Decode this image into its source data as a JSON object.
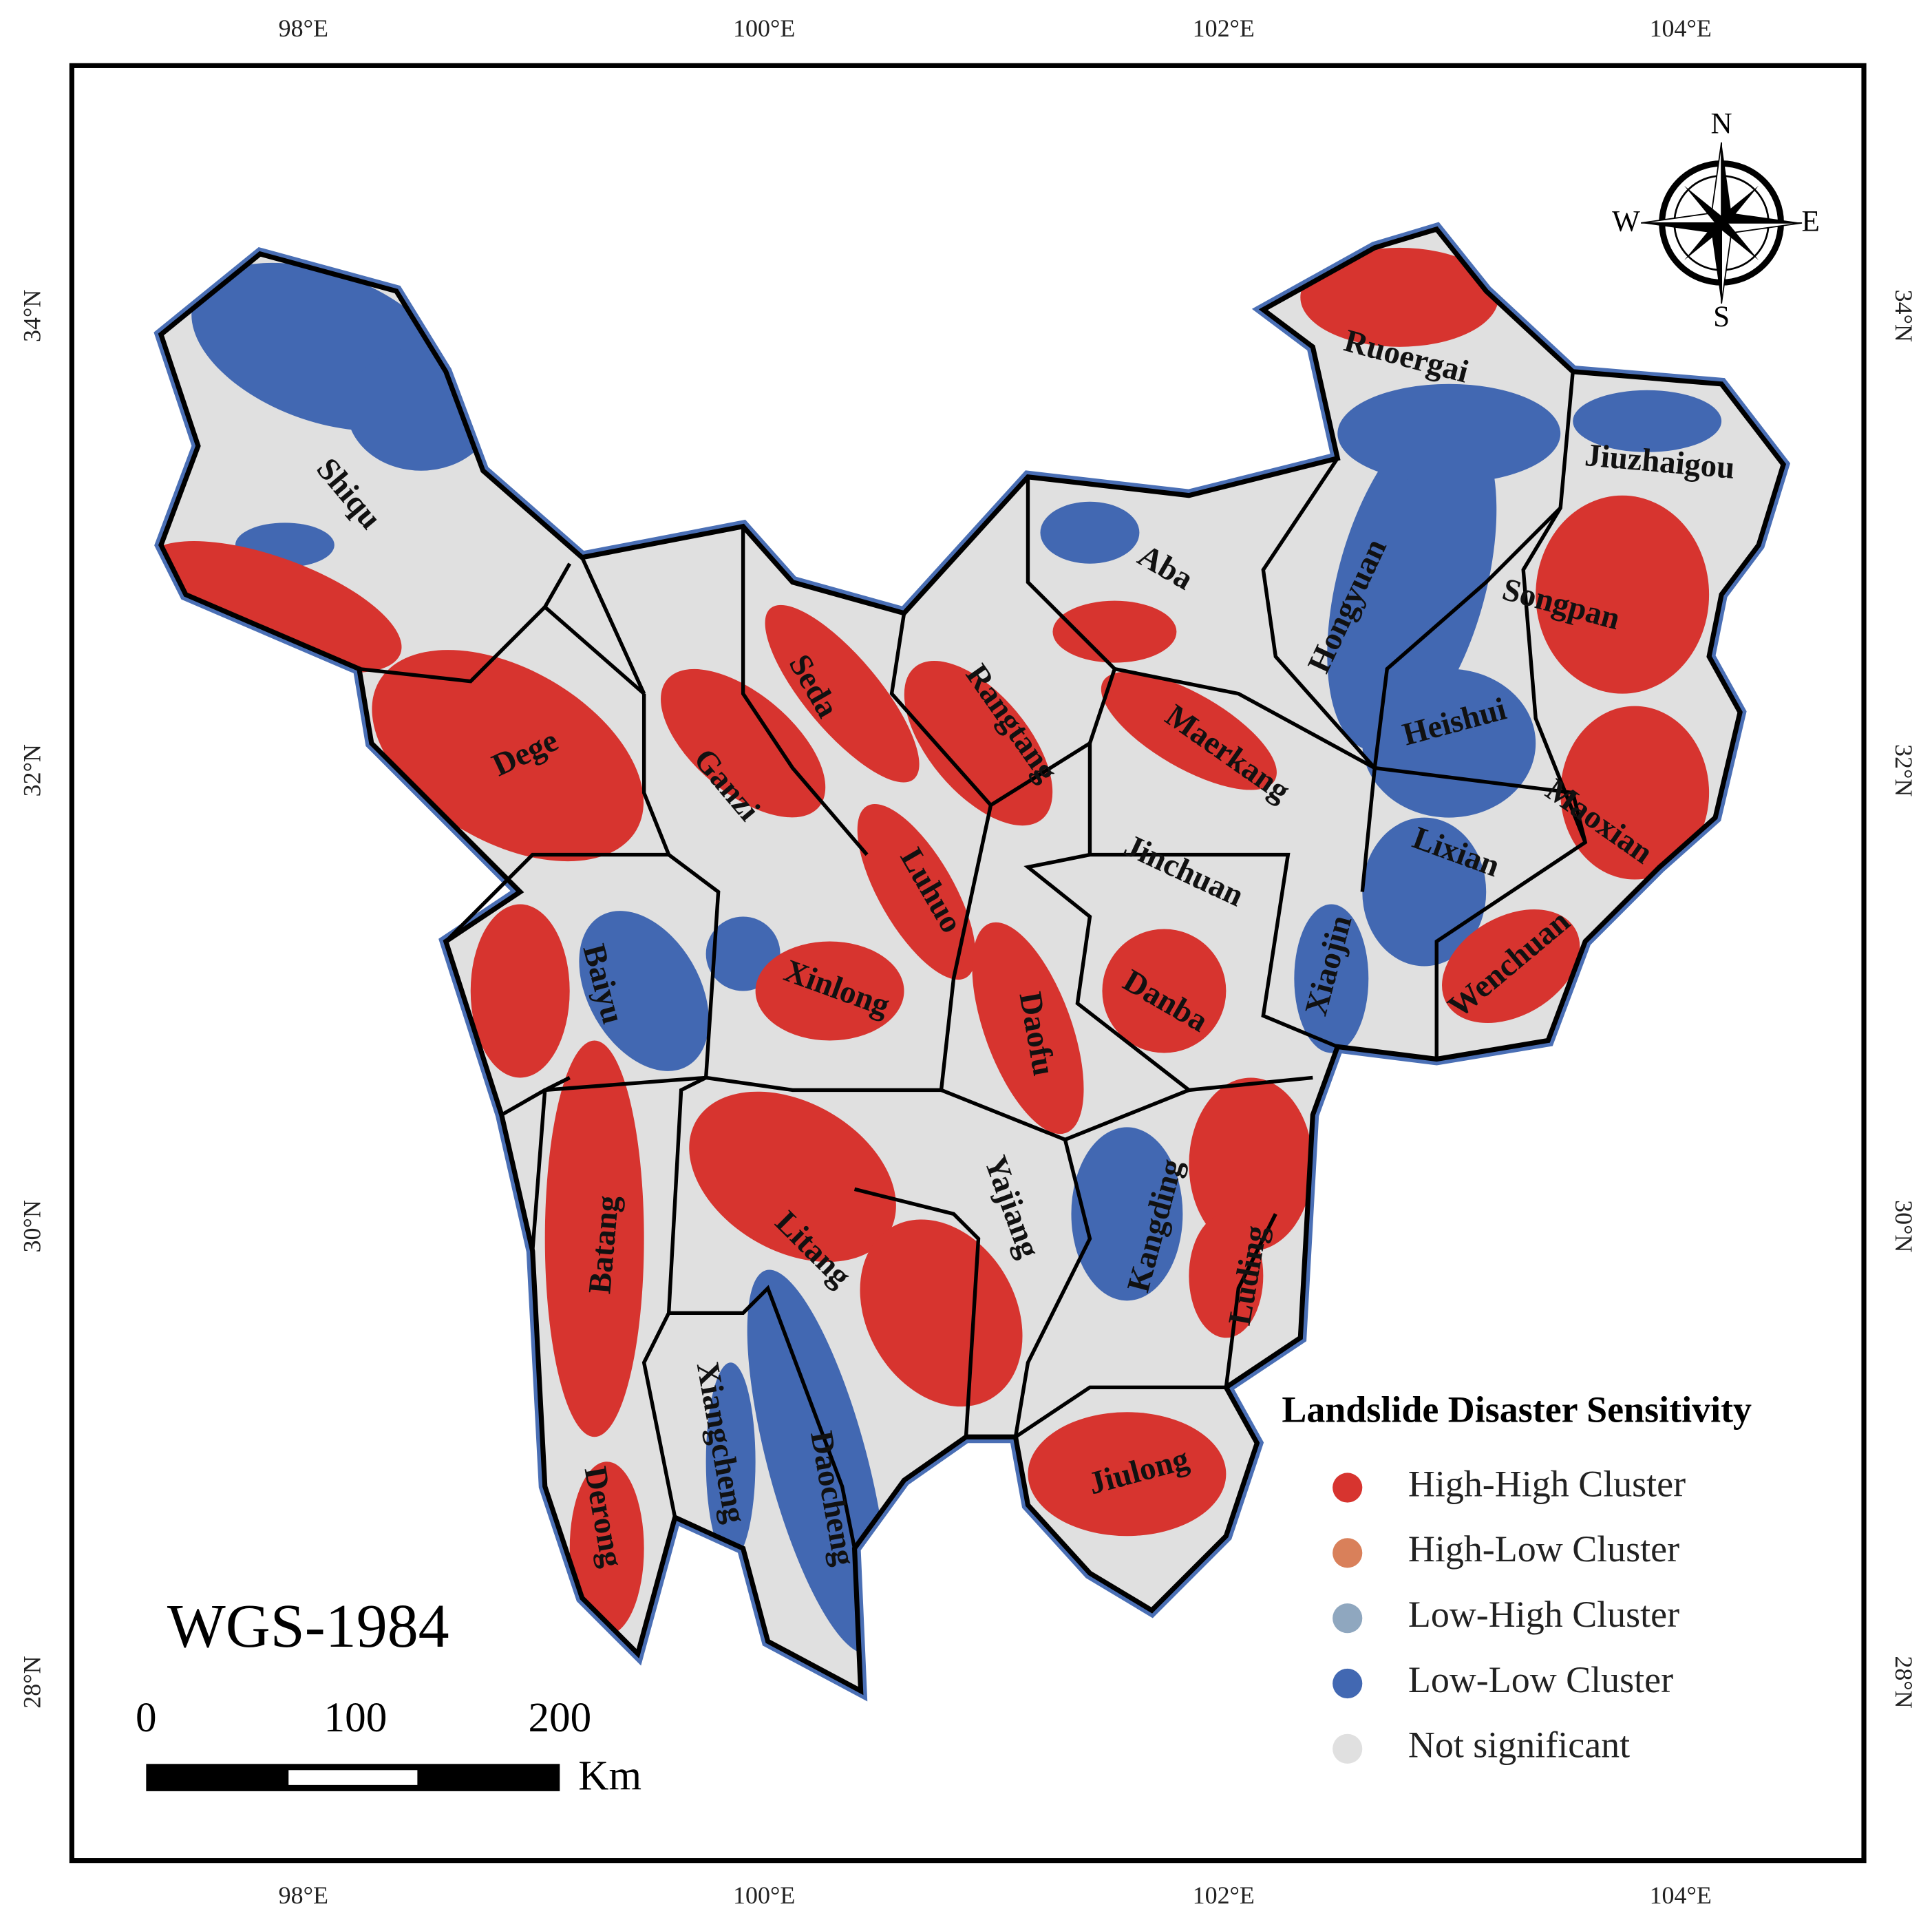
{
  "map": {
    "projection": "WGS-1984",
    "longitude_labels": [
      "98°E",
      "100°E",
      "102°E",
      "104°E"
    ],
    "latitude_labels": [
      "34°N",
      "32°N",
      "30°N",
      "28°N"
    ],
    "compass": {
      "north": "N",
      "south": "S",
      "east": "E",
      "west": "W"
    },
    "scale_bar": {
      "labels": [
        "0",
        "100",
        "200"
      ],
      "unit": "Km"
    },
    "counties": [
      "Shiqu",
      "Dege",
      "Ganzi",
      "Seda",
      "Rangtang",
      "Aba",
      "Hongyuan",
      "Ruoergai",
      "Jiuzhaigou",
      "Songpan",
      "Heishui",
      "Maerkang",
      "Maoxian",
      "Lixian",
      "Jinchuan",
      "Luhuo",
      "Xiaojin",
      "Wenchuan",
      "Danba",
      "Xinlong",
      "Baiyu",
      "Daofu",
      "Yajiang",
      "Kangding",
      "Luding",
      "Batang",
      "Litang",
      "Xiangcheng",
      "Daocheng",
      "Derong",
      "Jiulong"
    ],
    "legend": {
      "title": "Landslide Disaster Sensitivity",
      "items": [
        {
          "label": "High-High Cluster",
          "color": "#d7342f"
        },
        {
          "label": "High-Low Cluster",
          "color": "#d9805a"
        },
        {
          "label": "Low-High Cluster",
          "color": "#8fa7bf"
        },
        {
          "label": "Low-Low Cluster",
          "color": "#4268b2"
        },
        {
          "label": "Not significant",
          "color": "#e0e0e0"
        }
      ]
    }
  }
}
